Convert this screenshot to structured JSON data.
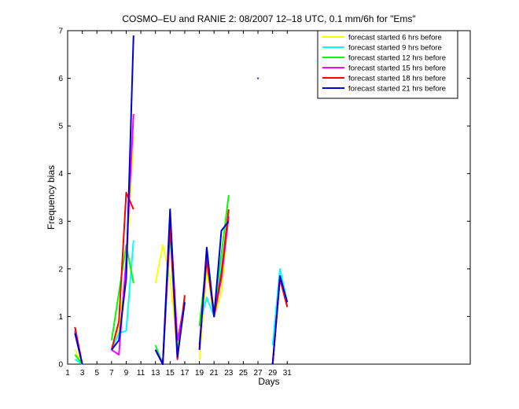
{
  "chart_data": {
    "type": "line",
    "title": "COSMO–EU and RANIE 2: 08/2007 12–18 UTC, 0.1 mm/6h for \"Ems\"",
    "xlabel": "Days",
    "ylabel": "Frequency bias",
    "xlim": [
      1,
      56
    ],
    "ylim": [
      0,
      7
    ],
    "x_ticks": [
      1,
      3,
      5,
      7,
      9,
      11,
      13,
      15,
      17,
      19,
      21,
      23,
      25,
      27,
      29,
      31
    ],
    "y_ticks": [
      0,
      1,
      2,
      3,
      4,
      5,
      6,
      7
    ],
    "legend_position": "top-right",
    "series": [
      {
        "name": "forecast started 6 hrs before",
        "color": "#ffff00",
        "points": [
          [
            2,
            0.3
          ],
          [
            3,
            0
          ],
          null,
          [
            7,
            0.3
          ],
          [
            8,
            0.8
          ],
          [
            9,
            2.0
          ],
          [
            10,
            4.8
          ],
          null,
          [
            13,
            1.7
          ],
          [
            14,
            2.5
          ],
          [
            15,
            1.8
          ],
          [
            16,
            0.3
          ],
          [
            17,
            1.4
          ],
          null,
          [
            19,
            0.1
          ],
          [
            20,
            2.0
          ],
          [
            21,
            1.0
          ],
          [
            22,
            1.5
          ],
          [
            23,
            3.2
          ],
          null,
          [
            29,
            0.4
          ],
          [
            30,
            1.8
          ],
          [
            31,
            1.3
          ]
        ]
      },
      {
        "name": "forecast started 9 hrs before",
        "color": "#00ffff",
        "points": [
          [
            2,
            0.1
          ],
          [
            3,
            0
          ],
          null,
          [
            7,
            0.3
          ],
          [
            8,
            0.65
          ],
          [
            9,
            0.7
          ],
          [
            10,
            2.6
          ],
          null,
          [
            13,
            0.3
          ],
          [
            14,
            0
          ],
          [
            15,
            2.8
          ],
          [
            16,
            0.2
          ],
          [
            17,
            1.3
          ],
          null,
          [
            19,
            0.8
          ],
          [
            20,
            1.4
          ],
          [
            21,
            1.0
          ],
          [
            22,
            2.0
          ],
          [
            23,
            3.1
          ],
          null,
          [
            29,
            0.4
          ],
          [
            30,
            2.0
          ],
          [
            31,
            1.3
          ]
        ]
      },
      {
        "name": "forecast started 12 hrs before",
        "color": "#00ff00",
        "points": [
          [
            2,
            0.2
          ],
          [
            3,
            0
          ],
          null,
          [
            7,
            0.5
          ],
          [
            8,
            1.5
          ],
          [
            9,
            2.5
          ],
          [
            10,
            1.7
          ],
          null,
          [
            13,
            0.4
          ],
          [
            14,
            0
          ],
          [
            15,
            2.8
          ],
          [
            16,
            0.2
          ],
          [
            17,
            1.3
          ],
          null,
          [
            19,
            0.8
          ],
          [
            20,
            2.2
          ],
          [
            21,
            1.1
          ],
          [
            22,
            2.3
          ],
          [
            23,
            3.55
          ],
          null,
          [
            29,
            0
          ],
          [
            30,
            1.8
          ],
          [
            31,
            1.3
          ]
        ]
      },
      {
        "name": "forecast started 15 hrs before",
        "color": "#ff00ff",
        "points": [
          [
            2,
            0.7
          ],
          [
            3,
            0
          ],
          null,
          [
            7,
            0.3
          ],
          [
            8,
            0.2
          ],
          [
            9,
            2.2
          ],
          [
            10,
            5.25
          ],
          null,
          [
            13,
            0.3
          ],
          [
            14,
            0
          ],
          [
            15,
            3.1
          ],
          [
            16,
            0.5
          ],
          [
            17,
            1.3
          ],
          null,
          [
            19,
            0.3
          ],
          [
            20,
            2.3
          ],
          [
            21,
            1.0
          ],
          [
            22,
            1.8
          ],
          [
            23,
            3.1
          ],
          null,
          [
            29,
            0
          ],
          [
            30,
            1.8
          ],
          [
            31,
            1.2
          ]
        ]
      },
      {
        "name": "forecast started 18 hrs before",
        "color": "#ff0000",
        "points": [
          [
            2,
            0.78
          ],
          [
            3,
            0
          ],
          null,
          [
            7,
            0.3
          ],
          [
            8,
            0.9
          ],
          [
            9,
            3.6
          ],
          [
            10,
            3.25
          ],
          null,
          [
            13,
            0.3
          ],
          [
            14,
            0
          ],
          [
            15,
            2.9
          ],
          [
            16,
            0.1
          ],
          [
            17,
            1.45
          ],
          null,
          [
            19,
            0.4
          ],
          [
            20,
            2.2
          ],
          [
            21,
            1.0
          ],
          [
            22,
            1.9
          ],
          [
            23,
            3.25
          ],
          null,
          [
            29,
            0
          ],
          [
            30,
            1.8
          ],
          [
            31,
            1.2
          ]
        ]
      },
      {
        "name": "forecast started 21 hrs before",
        "color": "#0000dd",
        "points": [
          [
            2,
            0.65
          ],
          [
            3,
            0
          ],
          null,
          [
            7,
            0.3
          ],
          [
            8,
            0.5
          ],
          [
            9,
            1.8
          ],
          [
            10,
            6.9
          ],
          null,
          [
            13,
            0.3
          ],
          [
            14,
            0
          ],
          [
            15,
            3.25
          ],
          [
            16,
            0.15
          ],
          [
            17,
            1.3
          ],
          null,
          [
            19,
            0.3
          ],
          [
            20,
            2.45
          ],
          [
            21,
            1.0
          ],
          [
            22,
            2.8
          ],
          [
            23,
            3.0
          ],
          null,
          [
            27,
            6.0
          ],
          null,
          [
            29,
            0
          ],
          [
            30,
            1.85
          ],
          [
            31,
            1.3
          ]
        ]
      }
    ]
  }
}
